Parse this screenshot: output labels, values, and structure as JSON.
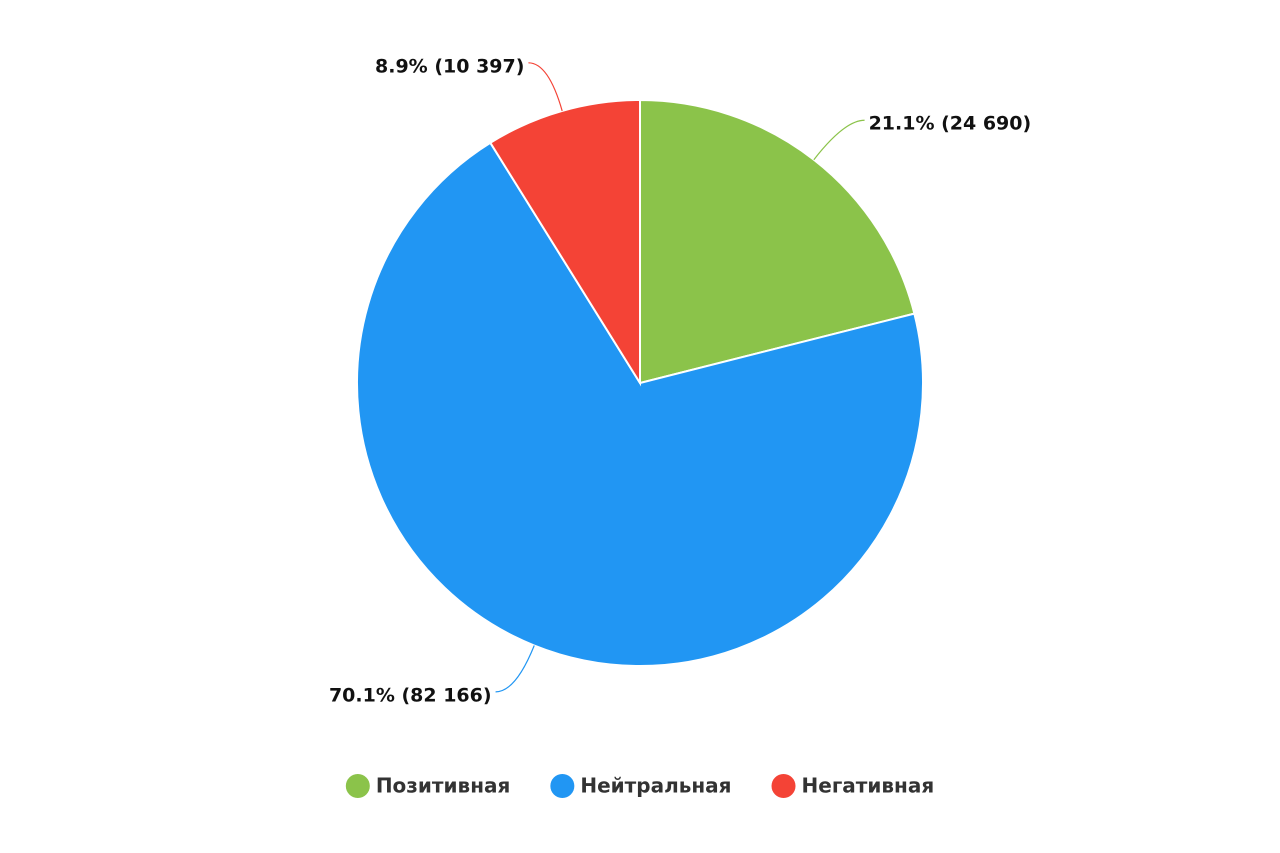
{
  "chart_data": {
    "type": "pie",
    "categories": [
      "Позитивная",
      "Нейтральная",
      "Негативная"
    ],
    "values": [
      24690,
      82166,
      10397
    ],
    "value_labels": [
      "21.1% (24 690)",
      "70.1% (82 166)",
      "8.9% (10 397)"
    ],
    "colors": [
      "#8bc34a",
      "#2196f3",
      "#f44336"
    ],
    "legend": "bottom"
  }
}
